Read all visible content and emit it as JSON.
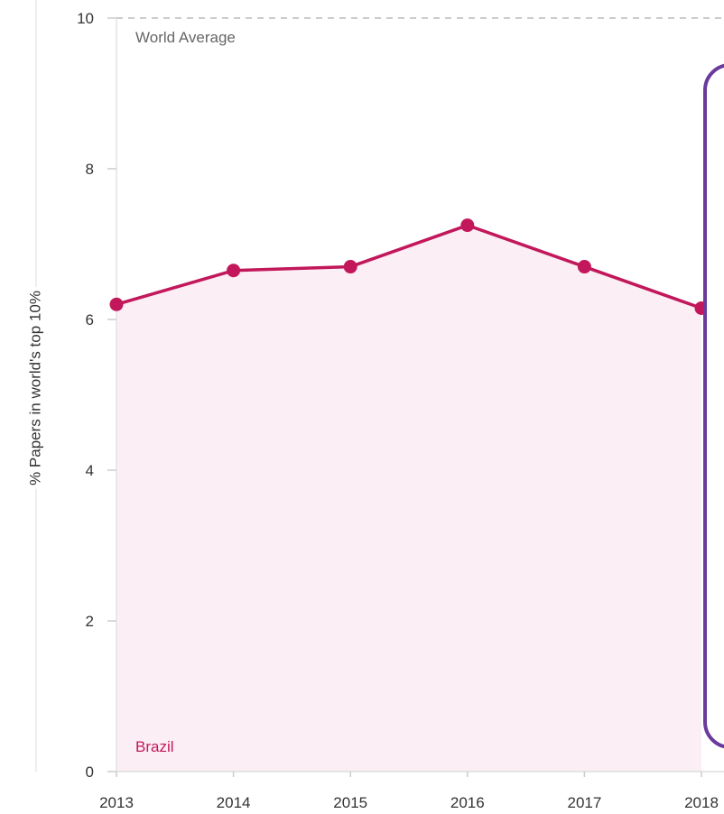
{
  "chart_data": {
    "type": "area",
    "ylabel": "% Papers in world's top 10%",
    "xlabel": "",
    "ylim": [
      0,
      10
    ],
    "yticks": [
      0,
      2,
      4,
      6,
      8,
      10
    ],
    "x": [
      2013,
      2014,
      2015,
      2016,
      2017,
      2018
    ],
    "xtick_labels": [
      "2013",
      "2014",
      "2015",
      "2016",
      "2017",
      "2018"
    ],
    "reference_line": {
      "label": "World Average",
      "value": 10,
      "style": "dashed"
    },
    "series": [
      {
        "name": "Brazil",
        "values": [
          6.2,
          6.65,
          6.7,
          7.25,
          6.7,
          6.15
        ]
      }
    ],
    "grid": false,
    "colors": {
      "line": "#c2185b",
      "fill": "#fbeef4",
      "reference": "#bbbbbb",
      "overlay_border": "#6a3a9c"
    }
  }
}
